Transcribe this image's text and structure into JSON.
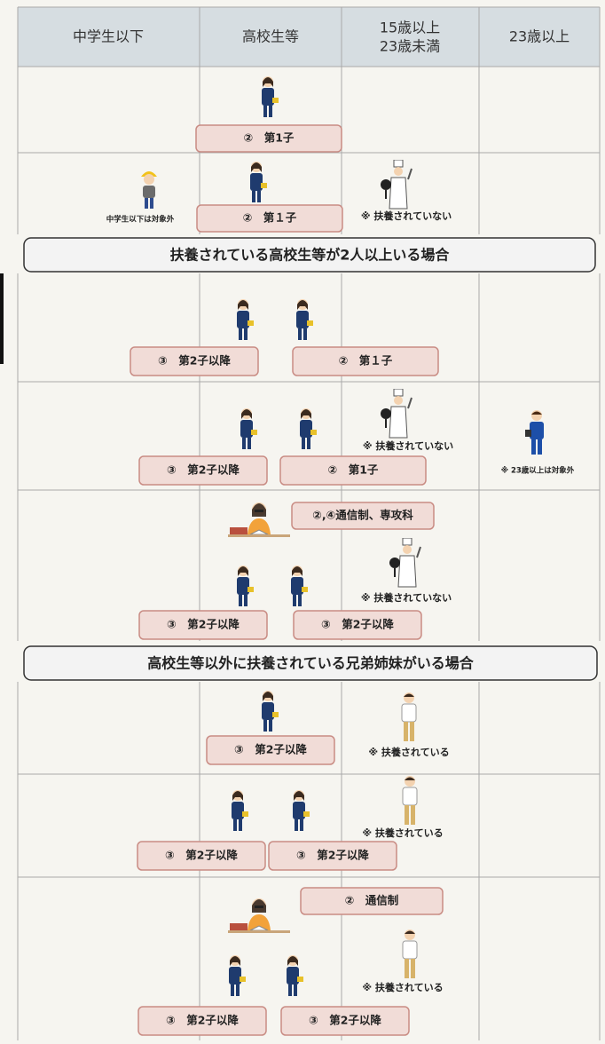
{
  "header": [
    [
      "中学生以下"
    ],
    [
      "高校生等"
    ],
    [
      "15歳以上",
      "23歳未満"
    ],
    [
      "23歳以上"
    ]
  ],
  "section_titles": [
    "扶養されている高校生等が2人以上いる場合",
    "高校生等以外に扶養されている兄弟姉妹がいる場合"
  ],
  "rows": [
    {
      "labels": [
        "②　第1子"
      ]
    },
    {
      "labels": [
        "②　第１子"
      ],
      "notes": [
        "中学生以下は対象外",
        "※ 扶養されていない"
      ]
    },
    {
      "labels": [
        "③　第2子以降",
        "②　第１子"
      ]
    },
    {
      "labels": [
        "③　第2子以降",
        "②　第1子"
      ],
      "notes": [
        "※ 扶養されていない",
        "※ 23歳以上は対象外"
      ]
    },
    {
      "labels": [
        "②,④通信制、専攻科",
        "③　第2子以降",
        "③　第2子以降"
      ],
      "notes": [
        "※ 扶養されていない"
      ]
    },
    {
      "labels": [
        "③　第2子以降"
      ],
      "notes": [
        "※ 扶養されている"
      ]
    },
    {
      "labels": [
        "③　第2子以降",
        "③　第2子以降"
      ],
      "notes": [
        "※ 扶養されている"
      ]
    },
    {
      "labels": [
        "②　通信制",
        "③　第2子以降",
        "③　第2子以降"
      ],
      "notes": [
        "※ 扶養されている"
      ]
    }
  ]
}
